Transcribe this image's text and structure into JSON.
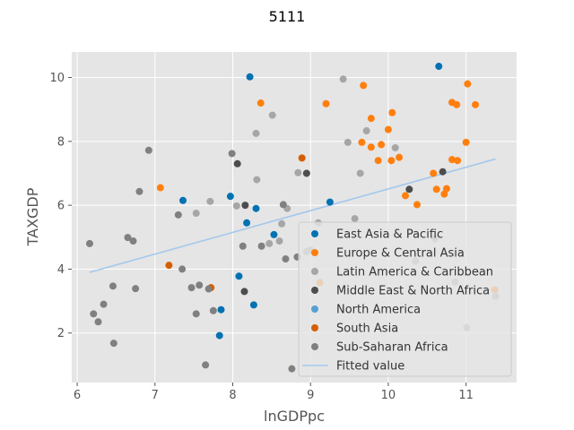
{
  "chart_data": {
    "type": "scatter",
    "title": "5111",
    "xlabel": "lnGDPpc",
    "ylabel": "TAXGDP",
    "xlim": [
      5.93,
      11.65
    ],
    "ylim": [
      0.45,
      10.8
    ],
    "xticks": [
      6,
      7,
      8,
      9,
      10,
      11
    ],
    "yticks": [
      2,
      4,
      6,
      8,
      10
    ],
    "grid": true,
    "legend_position": "lower-right",
    "series": [
      {
        "name": "East Asia & Pacific",
        "color": "#0072b2",
        "points": [
          [
            8.22,
            10.02
          ],
          [
            10.65,
            10.35
          ],
          [
            7.36,
            6.15
          ],
          [
            7.97,
            6.28
          ],
          [
            8.3,
            5.9
          ],
          [
            8.18,
            5.45
          ],
          [
            8.53,
            5.08
          ],
          [
            9.25,
            6.1
          ],
          [
            8.08,
            3.78
          ],
          [
            7.85,
            2.73
          ],
          [
            8.27,
            2.88
          ],
          [
            7.83,
            1.92
          ]
        ]
      },
      {
        "name": "Europe & Central Asia",
        "color": "#ff7f0e",
        "points": [
          [
            8.36,
            9.2
          ],
          [
            9.2,
            9.18
          ],
          [
            9.68,
            9.75
          ],
          [
            10.82,
            9.22
          ],
          [
            10.88,
            9.15
          ],
          [
            11.02,
            9.8
          ],
          [
            11.12,
            9.15
          ],
          [
            9.78,
            8.72
          ],
          [
            10.05,
            8.9
          ],
          [
            10.0,
            8.37
          ],
          [
            9.66,
            7.97
          ],
          [
            9.78,
            7.82
          ],
          [
            9.91,
            7.9
          ],
          [
            9.87,
            7.4
          ],
          [
            10.04,
            7.4
          ],
          [
            10.14,
            7.5
          ],
          [
            10.58,
            7.0
          ],
          [
            10.82,
            7.43
          ],
          [
            10.89,
            7.4
          ],
          [
            11.0,
            7.97
          ],
          [
            10.62,
            6.5
          ],
          [
            10.72,
            6.35
          ],
          [
            10.75,
            6.52
          ],
          [
            10.37,
            6.02
          ],
          [
            10.22,
            6.3
          ],
          [
            7.07,
            6.55
          ],
          [
            9.12,
            3.58
          ],
          [
            11.37,
            3.35
          ]
        ]
      },
      {
        "name": "Latin America & Caribbean",
        "color": "#a6a6a6",
        "points": [
          [
            9.42,
            9.95
          ],
          [
            8.51,
            8.82
          ],
          [
            8.3,
            8.25
          ],
          [
            9.72,
            8.33
          ],
          [
            9.48,
            7.97
          ],
          [
            10.09,
            7.8
          ],
          [
            8.95,
            7.0
          ],
          [
            9.64,
            7.0
          ],
          [
            8.84,
            7.02
          ],
          [
            8.31,
            6.8
          ],
          [
            7.71,
            6.12
          ],
          [
            7.53,
            5.75
          ],
          [
            8.05,
            5.98
          ],
          [
            8.7,
            5.9
          ],
          [
            8.63,
            5.42
          ],
          [
            9.1,
            5.45
          ],
          [
            9.57,
            5.58
          ],
          [
            8.6,
            4.88
          ],
          [
            8.47,
            4.8
          ],
          [
            8.95,
            4.55
          ],
          [
            9.0,
            4.6
          ],
          [
            10.6,
            4.95
          ],
          [
            10.35,
            4.25
          ],
          [
            10.86,
            3.6
          ],
          [
            11.01,
            2.17
          ],
          [
            11.38,
            3.15
          ]
        ]
      },
      {
        "name": "Middle East & North Africa",
        "color": "#4d4d4d",
        "points": [
          [
            8.06,
            7.3
          ],
          [
            8.16,
            6.0
          ],
          [
            8.95,
            7.0
          ],
          [
            10.27,
            6.5
          ],
          [
            10.7,
            7.05
          ],
          [
            8.15,
            3.3
          ]
        ]
      },
      {
        "name": "North America",
        "color": "#56a0d3",
        "points": []
      },
      {
        "name": "South Asia",
        "color": "#d55e00",
        "points": [
          [
            8.89,
            7.48
          ],
          [
            7.18,
            4.12
          ],
          [
            7.72,
            3.42
          ]
        ]
      },
      {
        "name": "Sub-Saharan Africa",
        "color": "#808080",
        "points": [
          [
            6.92,
            7.72
          ],
          [
            7.99,
            7.62
          ],
          [
            6.8,
            6.43
          ],
          [
            7.3,
            5.7
          ],
          [
            8.65,
            6.02
          ],
          [
            7.35,
            4.0
          ],
          [
            6.16,
            4.8
          ],
          [
            6.65,
            4.99
          ],
          [
            6.72,
            4.88
          ],
          [
            8.13,
            4.72
          ],
          [
            8.37,
            4.72
          ],
          [
            8.68,
            4.32
          ],
          [
            8.83,
            4.38
          ],
          [
            6.46,
            3.47
          ],
          [
            6.75,
            3.39
          ],
          [
            7.47,
            3.42
          ],
          [
            7.57,
            3.5
          ],
          [
            7.69,
            3.38
          ],
          [
            6.21,
            2.6
          ],
          [
            6.34,
            2.9
          ],
          [
            6.27,
            2.35
          ],
          [
            7.53,
            2.6
          ],
          [
            7.75,
            2.7
          ],
          [
            6.47,
            1.68
          ],
          [
            7.65,
            1.0
          ],
          [
            8.76,
            0.88
          ]
        ]
      }
    ],
    "fitted_line": {
      "name": "Fitted value",
      "color": "#a3c8ec",
      "x": [
        6.16,
        11.38
      ],
      "y": [
        3.9,
        7.45
      ]
    }
  }
}
